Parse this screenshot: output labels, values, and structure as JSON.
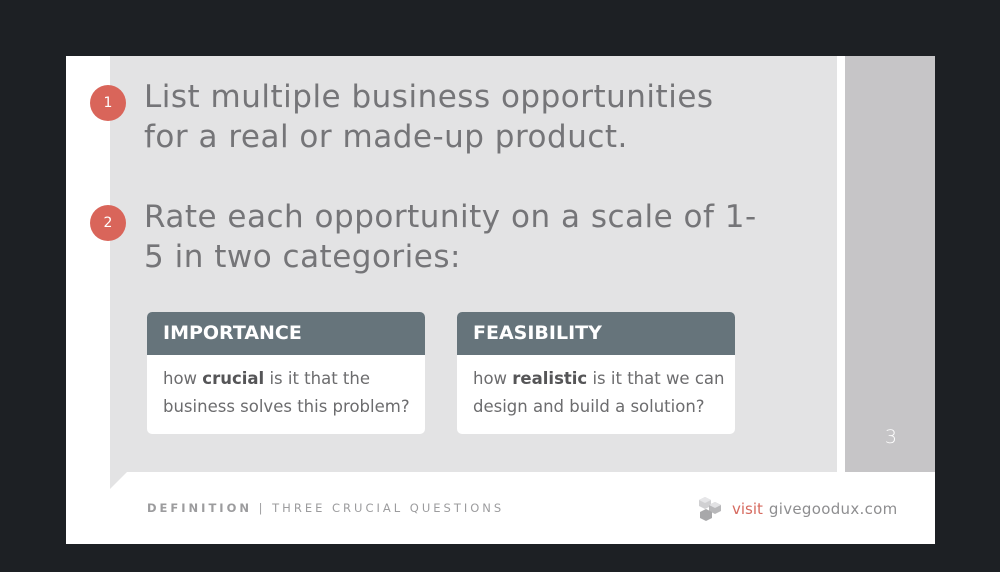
{
  "slide": {
    "page_number": "3",
    "steps": [
      {
        "number": "1",
        "text": "List multiple business opportunities for a real or made-up product."
      },
      {
        "number": "2",
        "text": "Rate each opportunity on a scale of 1-5 in two categories:"
      }
    ],
    "cards": [
      {
        "title": "IMPORTANCE",
        "body_prefix": "how ",
        "body_emphasis": "crucial",
        "body_suffix": " is it that the business solves this problem?"
      },
      {
        "title": "FEASIBILITY",
        "body_prefix": "how ",
        "body_emphasis": "realistic",
        "body_suffix": " is it that we can design and build a solution?"
      }
    ],
    "footer": {
      "section": "DEFINITION",
      "separator": " | ",
      "subtitle": "THREE CRUCIAL QUESTIONS",
      "visit": "visit",
      "site": "givegoodux.com",
      "logo_icon": "cube-cluster-logo"
    }
  },
  "colors": {
    "background": "#1d2024",
    "panel": "#e3e3e4",
    "side_panel": "#c6c5c7",
    "badge": "#d9655a",
    "card_header": "#66747b",
    "accent_text": "#d66a5f"
  }
}
